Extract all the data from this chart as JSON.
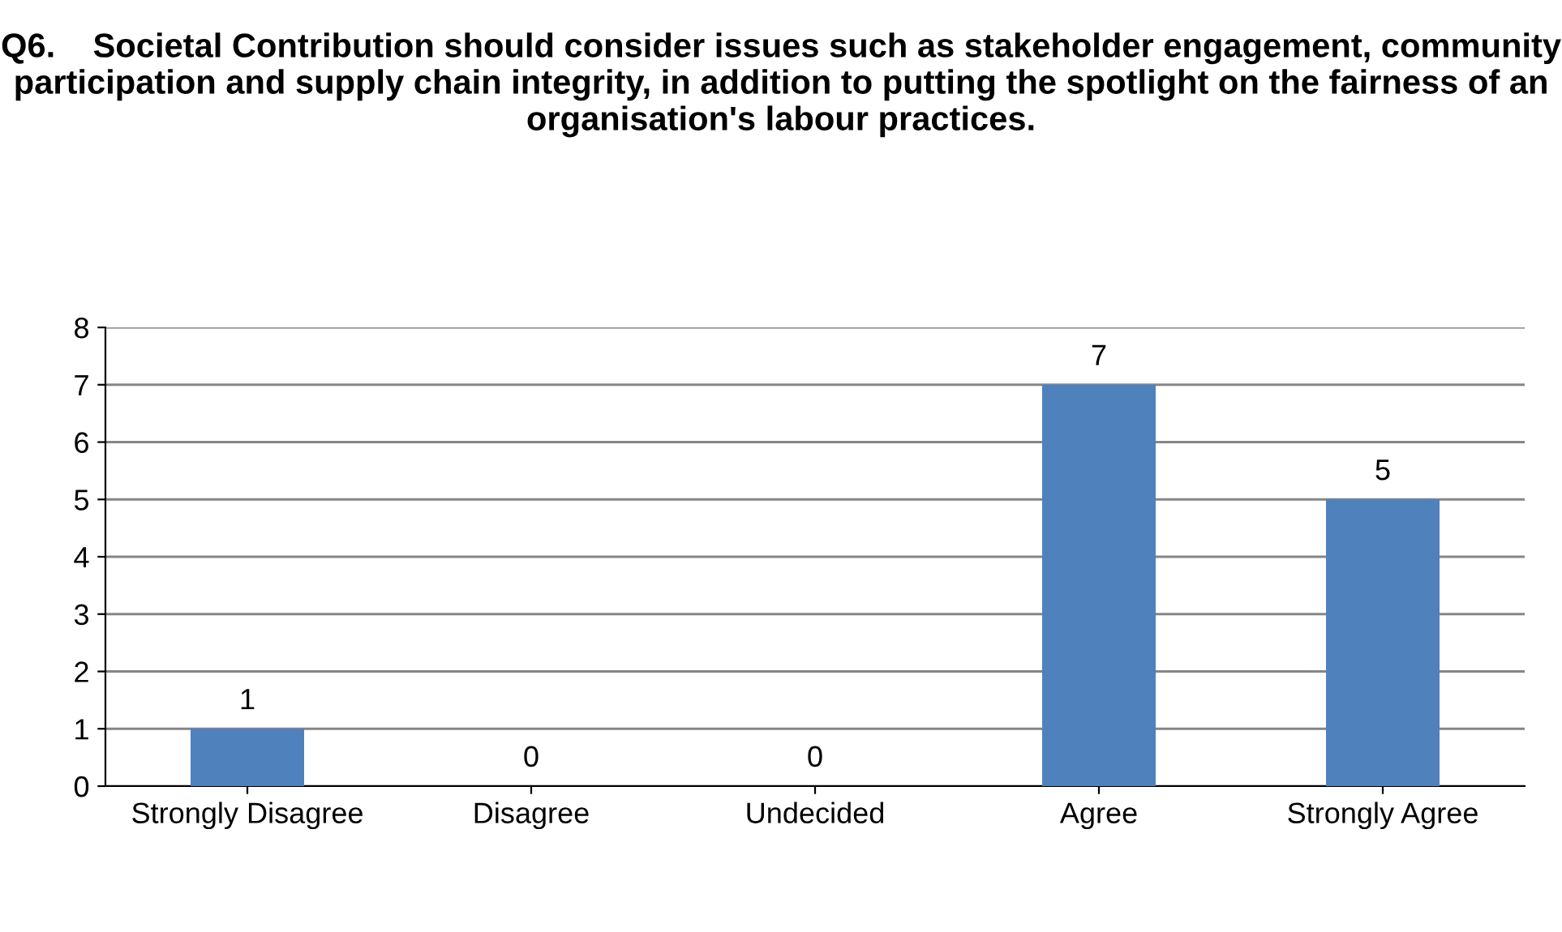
{
  "chart_data": {
    "type": "bar",
    "title": "Q6.    Societal Contribution should consider issues such as stakeholder engagement, community participation and supply chain integrity, in addition to putting the spotlight on the fairness of an organisation's labour practices.",
    "categories": [
      "Strongly Disagree",
      "Disagree",
      "Undecided",
      "Agree",
      "Strongly Agree"
    ],
    "values": [
      1,
      0,
      0,
      7,
      5
    ],
    "color": "#4f81bd",
    "ylim": [
      0,
      8
    ],
    "yticks": [
      0,
      1,
      2,
      3,
      4,
      5,
      6,
      7,
      8
    ],
    "grid": "y",
    "data_labels": true,
    "legend": false
  }
}
